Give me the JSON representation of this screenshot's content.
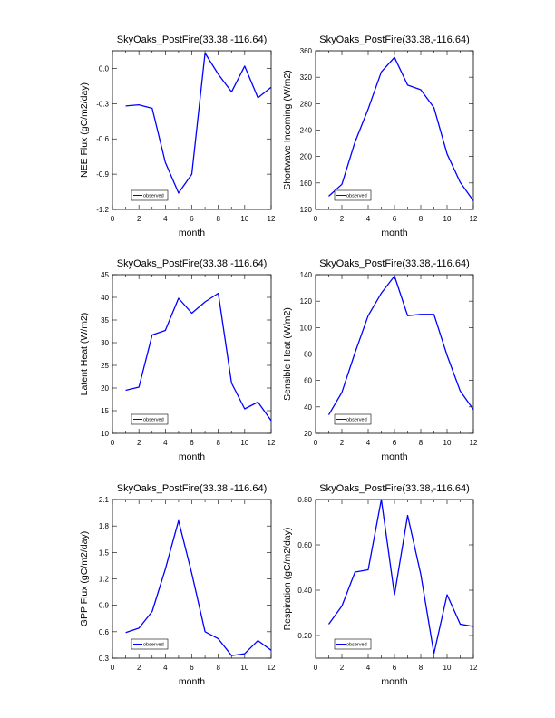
{
  "series_color": "#0000ff",
  "chart_data": [
    {
      "type": "line",
      "title": "SkyOaks_PostFire(33.38,-116.64)",
      "xlabel": "month",
      "ylabel": "NEE Flux (gC/m2/day)",
      "xlim": [
        0,
        12
      ],
      "ylim": [
        -1.2,
        0.15
      ],
      "x_ticks": [
        0,
        2,
        4,
        6,
        8,
        10,
        12
      ],
      "y_ticks": [
        -1.2,
        -0.9,
        -0.6,
        -0.3,
        0.0
      ],
      "y_tick_labels": [
        "-1.2",
        "-0.9",
        "-0.6",
        "-0.3",
        "0.0"
      ],
      "legend": "observed",
      "x": [
        1,
        2,
        3,
        4,
        5,
        6,
        7,
        8,
        9,
        10,
        11,
        12
      ],
      "values": [
        -0.32,
        -0.31,
        -0.34,
        -0.8,
        -1.06,
        -0.9,
        0.13,
        -0.05,
        -0.2,
        0.02,
        -0.25,
        -0.16
      ]
    },
    {
      "type": "line",
      "title": "SkyOaks_PostFire(33.38,-116.64)",
      "xlabel": "month",
      "ylabel": "Shortwave Incoming (W/m2)",
      "xlim": [
        0,
        12
      ],
      "ylim": [
        120,
        360
      ],
      "x_ticks": [
        0,
        2,
        4,
        6,
        8,
        10,
        12
      ],
      "y_ticks": [
        120,
        160,
        200,
        240,
        280,
        320,
        360
      ],
      "y_tick_labels": [
        "120",
        "160",
        "200",
        "240",
        "280",
        "320",
        "360"
      ],
      "legend": "observed",
      "x": [
        1,
        2,
        3,
        4,
        5,
        6,
        7,
        8,
        9,
        10,
        11,
        12
      ],
      "values": [
        140,
        158,
        222,
        272,
        328,
        350,
        308,
        301,
        274,
        204,
        161,
        133
      ]
    },
    {
      "type": "line",
      "title": "SkyOaks_PostFire(33.38,-116.64)",
      "xlabel": "month",
      "ylabel": "Latent Heat (W/m2)",
      "xlim": [
        0,
        12
      ],
      "ylim": [
        10,
        45
      ],
      "x_ticks": [
        0,
        2,
        4,
        6,
        8,
        10,
        12
      ],
      "y_ticks": [
        10,
        15,
        20,
        25,
        30,
        35,
        40,
        45
      ],
      "y_tick_labels": [
        "10",
        "15",
        "20",
        "25",
        "30",
        "35",
        "40",
        "45"
      ],
      "legend": "observed",
      "x": [
        1,
        2,
        3,
        4,
        5,
        6,
        7,
        8,
        9,
        10,
        11,
        12
      ],
      "values": [
        19.5,
        20.2,
        31.7,
        32.7,
        39.8,
        36.5,
        39.0,
        40.9,
        21.1,
        15.4,
        16.9,
        12.8
      ]
    },
    {
      "type": "line",
      "title": "SkyOaks_PostFire(33.38,-116.64)",
      "xlabel": "month",
      "ylabel": "Sensible Heat (W/m2)",
      "xlim": [
        0,
        12
      ],
      "ylim": [
        20,
        140
      ],
      "x_ticks": [
        0,
        2,
        4,
        6,
        8,
        10,
        12
      ],
      "y_ticks": [
        20,
        40,
        60,
        80,
        100,
        120,
        140
      ],
      "y_tick_labels": [
        "20",
        "40",
        "60",
        "80",
        "100",
        "120",
        "140"
      ],
      "legend": "observed",
      "x": [
        1,
        2,
        3,
        4,
        5,
        6,
        7,
        8,
        9,
        10,
        11,
        12
      ],
      "values": [
        34,
        51,
        81,
        109,
        126,
        139,
        109,
        110,
        110,
        79,
        52,
        38
      ]
    },
    {
      "type": "line",
      "title": "SkyOaks_PostFire(33.38,-116.64)",
      "xlabel": "month",
      "ylabel": "GPP Flux (gC/m2/day)",
      "xlim": [
        0,
        12
      ],
      "ylim": [
        0.3,
        2.1
      ],
      "x_ticks": [
        0,
        2,
        4,
        6,
        8,
        10,
        12
      ],
      "y_ticks": [
        0.3,
        0.6,
        0.9,
        1.2,
        1.5,
        1.8,
        2.1
      ],
      "y_tick_labels": [
        "0.3",
        "0.6",
        "0.9",
        "1.2",
        "1.5",
        "1.8",
        "2.1"
      ],
      "legend": "observed",
      "x": [
        1,
        2,
        3,
        4,
        5,
        6,
        7,
        8,
        9,
        10,
        11,
        12
      ],
      "values": [
        0.59,
        0.64,
        0.83,
        1.31,
        1.86,
        1.26,
        0.6,
        0.52,
        0.33,
        0.35,
        0.5,
        0.39
      ]
    },
    {
      "type": "line",
      "title": "SkyOaks_PostFire(33.38,-116.64)",
      "xlabel": "month",
      "ylabel": "Respiration (gC/m2/day)",
      "xlim": [
        0,
        12
      ],
      "ylim": [
        0.1,
        0.8
      ],
      "x_ticks": [
        0,
        2,
        4,
        6,
        8,
        10,
        12
      ],
      "y_ticks": [
        0.2,
        0.4,
        0.6,
        0.8
      ],
      "y_tick_labels": [
        "0.20",
        "0.40",
        "0.60",
        "0.80"
      ],
      "legend": "observed",
      "x": [
        1,
        2,
        3,
        4,
        5,
        6,
        7,
        8,
        9,
        10,
        11,
        12
      ],
      "values": [
        0.25,
        0.33,
        0.48,
        0.49,
        0.8,
        0.38,
        0.73,
        0.47,
        0.12,
        0.38,
        0.25,
        0.24
      ]
    }
  ]
}
